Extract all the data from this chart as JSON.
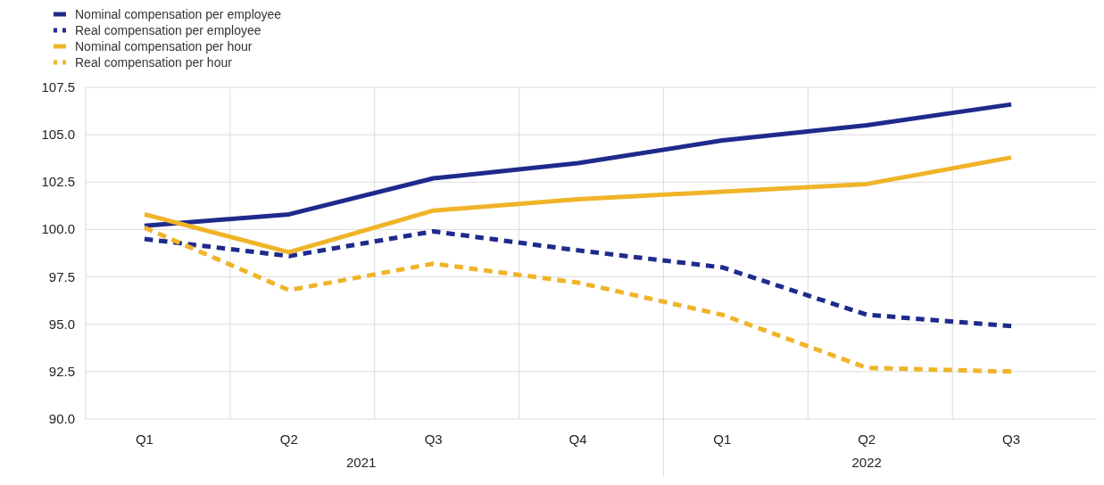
{
  "chart_data": {
    "type": "line",
    "categories": [
      "Q1",
      "Q2",
      "Q3",
      "Q4",
      "Q1",
      "Q2",
      "Q3"
    ],
    "series": [
      {
        "name": "Nominal compensation per employee",
        "color": "#1f2a8c",
        "line_style": "solid",
        "values": [
          100.2,
          100.8,
          102.7,
          103.5,
          104.7,
          105.5,
          106.6
        ]
      },
      {
        "name": "Real compensation per employee",
        "color": "#1f2a8c",
        "line_style": "dashed",
        "values": [
          99.5,
          98.6,
          99.9,
          98.9,
          98.0,
          95.5,
          94.9
        ]
      },
      {
        "name": "Nominal compensation per hour",
        "color": "#f0b429",
        "line_style": "solid",
        "values": [
          100.8,
          98.8,
          101.0,
          101.6,
          102.0,
          102.4,
          103.8
        ]
      },
      {
        "name": "Real compensation per hour",
        "color": "#f0b429",
        "line_style": "dashed",
        "values": [
          100.1,
          96.8,
          98.2,
          97.2,
          95.5,
          92.7,
          92.5
        ]
      }
    ],
    "ylim": [
      90,
      107.5
    ],
    "yticks": [
      {
        "value": 90,
        "label": "90.0"
      },
      {
        "value": 92.5,
        "label": "92.5"
      },
      {
        "value": 95,
        "label": "95.0"
      },
      {
        "value": 97.5,
        "label": "97.5"
      },
      {
        "value": 100,
        "label": "100.0"
      },
      {
        "value": 102.5,
        "label": "102.5"
      },
      {
        "value": 105,
        "label": "105.0"
      },
      {
        "value": 107.5,
        "label": "107.5"
      }
    ],
    "grid": true,
    "legend": "top left",
    "marker": "none",
    "annotations": [
      "2021",
      "2022"
    ]
  }
}
